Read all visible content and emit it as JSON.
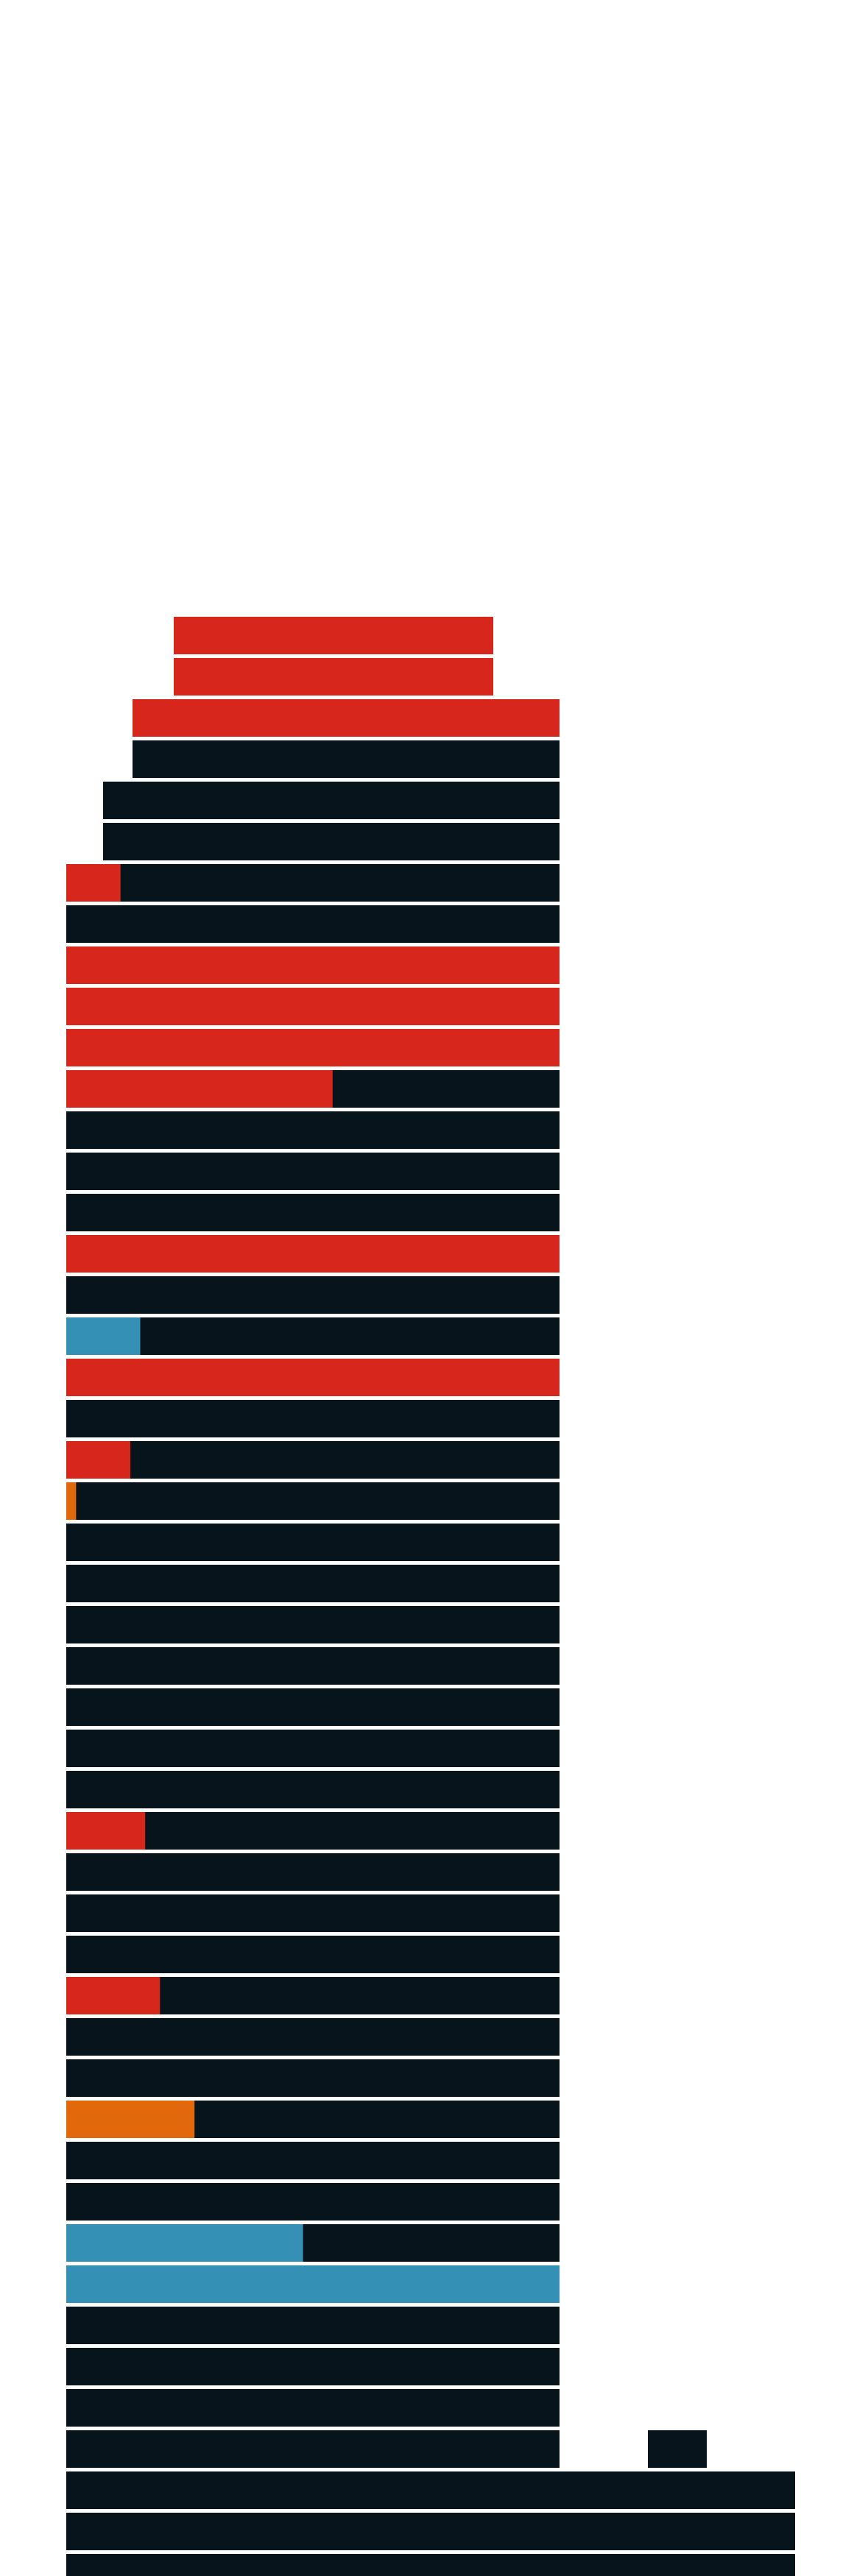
{
  "colors": {
    "background": "#ffffff",
    "base": "#07141b",
    "red": "#d7261c",
    "blue": "#3490b5",
    "orange": "#e2680c",
    "separator": "#ffffff"
  },
  "chart_data": {
    "type": "bar",
    "orientation": "horizontal-stacked",
    "note_rows_top_to_bottom": true,
    "series_colors": [
      "red",
      "blue",
      "orange",
      "base"
    ],
    "floors": [
      {
        "fill_fraction": 1.0,
        "color": "red"
      },
      {
        "fill_fraction": 1.0,
        "color": "red"
      },
      {
        "fill_fraction": 1.0,
        "color": "red"
      },
      {
        "fill_fraction": 0.0,
        "color": "base"
      },
      {
        "fill_fraction": 0.0,
        "color": "base"
      },
      {
        "fill_fraction": 0.0,
        "color": "base"
      },
      {
        "fill_fraction": 0.11,
        "color": "red"
      },
      {
        "fill_fraction": 0.0,
        "color": "base"
      },
      {
        "fill_fraction": 1.0,
        "color": "red"
      },
      {
        "fill_fraction": 1.0,
        "color": "red"
      },
      {
        "fill_fraction": 1.0,
        "color": "red"
      },
      {
        "fill_fraction": 0.54,
        "color": "red"
      },
      {
        "fill_fraction": 0.0,
        "color": "base"
      },
      {
        "fill_fraction": 0.0,
        "color": "base"
      },
      {
        "fill_fraction": 0.0,
        "color": "base"
      },
      {
        "fill_fraction": 1.0,
        "color": "red"
      },
      {
        "fill_fraction": 0.0,
        "color": "base"
      },
      {
        "fill_fraction": 0.15,
        "color": "blue"
      },
      {
        "fill_fraction": 1.0,
        "color": "red"
      },
      {
        "fill_fraction": 0.0,
        "color": "base"
      },
      {
        "fill_fraction": 0.13,
        "color": "red"
      },
      {
        "fill_fraction": 0.02,
        "color": "orange"
      },
      {
        "fill_fraction": 0.0,
        "color": "base"
      },
      {
        "fill_fraction": 0.0,
        "color": "base"
      },
      {
        "fill_fraction": 0.0,
        "color": "base"
      },
      {
        "fill_fraction": 0.0,
        "color": "base"
      },
      {
        "fill_fraction": 0.0,
        "color": "base"
      },
      {
        "fill_fraction": 0.0,
        "color": "base"
      },
      {
        "fill_fraction": 0.0,
        "color": "base"
      },
      {
        "fill_fraction": 0.16,
        "color": "red"
      },
      {
        "fill_fraction": 0.0,
        "color": "base"
      },
      {
        "fill_fraction": 0.0,
        "color": "base"
      },
      {
        "fill_fraction": 0.0,
        "color": "base"
      },
      {
        "fill_fraction": 0.19,
        "color": "red"
      },
      {
        "fill_fraction": 0.0,
        "color": "base"
      },
      {
        "fill_fraction": 0.0,
        "color": "base"
      },
      {
        "fill_fraction": 0.26,
        "color": "orange"
      },
      {
        "fill_fraction": 0.0,
        "color": "base"
      },
      {
        "fill_fraction": 0.0,
        "color": "base"
      },
      {
        "fill_fraction": 0.48,
        "color": "blue"
      },
      {
        "fill_fraction": 1.0,
        "color": "blue"
      },
      {
        "fill_fraction": 0.0,
        "color": "base"
      },
      {
        "fill_fraction": 0.0,
        "color": "base"
      },
      {
        "fill_fraction": 0.0,
        "color": "base"
      },
      {
        "fill_fraction": 0.0,
        "color": "base"
      },
      {
        "fill_fraction": 0.0,
        "color": "base"
      },
      {
        "fill_fraction": 0.0,
        "color": "base"
      },
      {
        "fill_fraction": 0.0,
        "color": "base"
      }
    ]
  }
}
